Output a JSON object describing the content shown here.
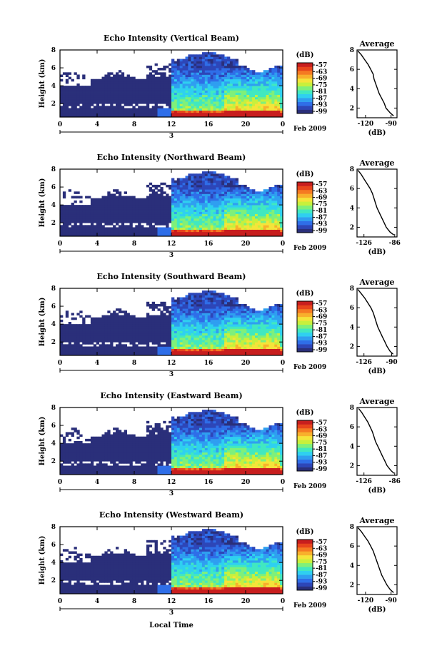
{
  "figure": {
    "xlabel": "Local Time",
    "date_label": "3",
    "month_label": "Feb 2009"
  },
  "colorbar": {
    "unit": "(dB)",
    "ticks": [
      "-57",
      "-63",
      "-69",
      "-75",
      "-81",
      "-87",
      "-93",
      "-99"
    ],
    "colors": [
      "#2a2f7a",
      "#2d46b8",
      "#2f6ee8",
      "#2f9ff0",
      "#2fd0f0",
      "#41e8c0",
      "#7ff07a",
      "#c8f03c",
      "#f5e43a",
      "#f8b02c",
      "#f57a22",
      "#e8451c",
      "#c81e1e"
    ]
  },
  "avg_panel": {
    "title": "Average",
    "xlabel": "(dB)"
  },
  "chart_data": [
    {
      "type": "heatmap",
      "title": "Echo Intensity (Vertical Beam)",
      "ylabel": "Height (km)",
      "x_ticks": [
        "0",
        "4",
        "8",
        "12",
        "16",
        "20",
        "0"
      ],
      "y_ticks": [
        "2",
        "4",
        "6",
        "8"
      ],
      "xlim": [
        0,
        24
      ],
      "ylim": [
        0.5,
        8
      ],
      "color_range_dB": [
        -99,
        -57
      ],
      "average_profile": {
        "title": "Average",
        "xlabel": "(dB)",
        "x_ticks": [
          "-120",
          "-90"
        ],
        "xlim": [
          -130,
          -83
        ],
        "y_ticks": [
          "2",
          "4",
          "6",
          "8"
        ],
        "ylim": [
          1,
          8
        ],
        "height_km": [
          7.9,
          7.5,
          7.0,
          6.5,
          6.0,
          5.5,
          5.0,
          4.5,
          4.0,
          3.5,
          3.0,
          2.5,
          2.0,
          1.5,
          1.2
        ],
        "dB": [
          -129,
          -125,
          -121,
          -117,
          -114,
          -111,
          -110,
          -108,
          -106,
          -104,
          -101,
          -98,
          -96,
          -91,
          -87
        ]
      }
    },
    {
      "type": "heatmap",
      "title": "Echo Intensity (Northward Beam)",
      "ylabel": "Height (km)",
      "x_ticks": [
        "0",
        "4",
        "8",
        "12",
        "16",
        "20",
        "0"
      ],
      "y_ticks": [
        "2",
        "4",
        "6",
        "8"
      ],
      "xlim": [
        0,
        24
      ],
      "ylim": [
        0.5,
        8
      ],
      "color_range_dB": [
        -99,
        -57
      ],
      "average_profile": {
        "title": "Average",
        "xlabel": "(dB)",
        "x_ticks": [
          "-126",
          "-86"
        ],
        "xlim": [
          -135,
          -83
        ],
        "y_ticks": [
          "2",
          "4",
          "6",
          "8"
        ],
        "ylim": [
          1,
          8
        ],
        "height_km": [
          7.9,
          7.5,
          7.0,
          6.5,
          6.0,
          5.5,
          5.0,
          4.5,
          4.0,
          3.5,
          3.0,
          2.5,
          2.0,
          1.5,
          1.2
        ],
        "dB": [
          -134,
          -130,
          -126,
          -122,
          -118,
          -115,
          -113,
          -111,
          -109,
          -106,
          -103,
          -100,
          -97,
          -92,
          -87
        ]
      }
    },
    {
      "type": "heatmap",
      "title": "Echo Intensity (Southward Beam)",
      "ylabel": "Height (km)",
      "x_ticks": [
        "0",
        "4",
        "8",
        "12",
        "16",
        "20",
        "0"
      ],
      "y_ticks": [
        "2",
        "4",
        "6",
        "8"
      ],
      "xlim": [
        0,
        24
      ],
      "ylim": [
        0.5,
        8
      ],
      "color_range_dB": [
        -99,
        -57
      ],
      "average_profile": {
        "title": "Average",
        "xlabel": "(dB)",
        "x_ticks": [
          "-126",
          "-90"
        ],
        "xlim": [
          -135,
          -83
        ],
        "y_ticks": [
          "2",
          "4",
          "6",
          "8"
        ],
        "ylim": [
          1,
          8
        ],
        "height_km": [
          7.9,
          7.5,
          7.0,
          6.5,
          6.0,
          5.5,
          5.0,
          4.5,
          4.0,
          3.5,
          3.0,
          2.5,
          2.0,
          1.5,
          1.2
        ],
        "dB": [
          -134,
          -130,
          -125,
          -121,
          -117,
          -114,
          -112,
          -110,
          -108,
          -105,
          -102,
          -99,
          -96,
          -92,
          -88
        ]
      }
    },
    {
      "type": "heatmap",
      "title": "Echo Intensity (Eastward Beam)",
      "ylabel": "Height (km)",
      "x_ticks": [
        "0",
        "4",
        "8",
        "12",
        "16",
        "20",
        "0"
      ],
      "y_ticks": [
        "2",
        "4",
        "6",
        "8"
      ],
      "xlim": [
        0,
        24
      ],
      "ylim": [
        0.5,
        8
      ],
      "color_range_dB": [
        -99,
        -57
      ],
      "average_profile": {
        "title": "Average",
        "xlabel": "(dB)",
        "x_ticks": [
          "-126",
          "-86"
        ],
        "xlim": [
          -135,
          -83
        ],
        "y_ticks": [
          "2",
          "4",
          "6",
          "8"
        ],
        "ylim": [
          1,
          8
        ],
        "height_km": [
          7.9,
          7.5,
          7.0,
          6.5,
          6.0,
          5.5,
          5.0,
          4.5,
          4.0,
          3.5,
          3.0,
          2.5,
          2.0,
          1.5,
          1.2
        ],
        "dB": [
          -133,
          -129,
          -125,
          -121,
          -118,
          -115,
          -113,
          -111,
          -108,
          -105,
          -102,
          -99,
          -96,
          -91,
          -87
        ]
      }
    },
    {
      "type": "heatmap",
      "title": "Echo Intensity (Westward Beam)",
      "ylabel": "Height (km)",
      "x_ticks": [
        "0",
        "4",
        "8",
        "12",
        "16",
        "20",
        "0"
      ],
      "y_ticks": [
        "2",
        "4",
        "6",
        "8"
      ],
      "xlim": [
        0,
        24
      ],
      "ylim": [
        0.5,
        8
      ],
      "color_range_dB": [
        -99,
        -57
      ],
      "average_profile": {
        "title": "Average",
        "xlabel": "(dB)",
        "x_ticks": [
          "-120",
          "-90"
        ],
        "xlim": [
          -130,
          -83
        ],
        "y_ticks": [
          "2",
          "4",
          "6",
          "8"
        ],
        "ylim": [
          1,
          8
        ],
        "height_km": [
          7.9,
          7.5,
          7.0,
          6.5,
          6.0,
          5.5,
          5.0,
          4.5,
          4.0,
          3.5,
          3.0,
          2.5,
          2.0,
          1.5,
          1.2
        ],
        "dB": [
          -129,
          -125,
          -121,
          -117,
          -114,
          -111,
          -109,
          -107,
          -105,
          -103,
          -101,
          -98,
          -95,
          -91,
          -87
        ]
      }
    }
  ]
}
